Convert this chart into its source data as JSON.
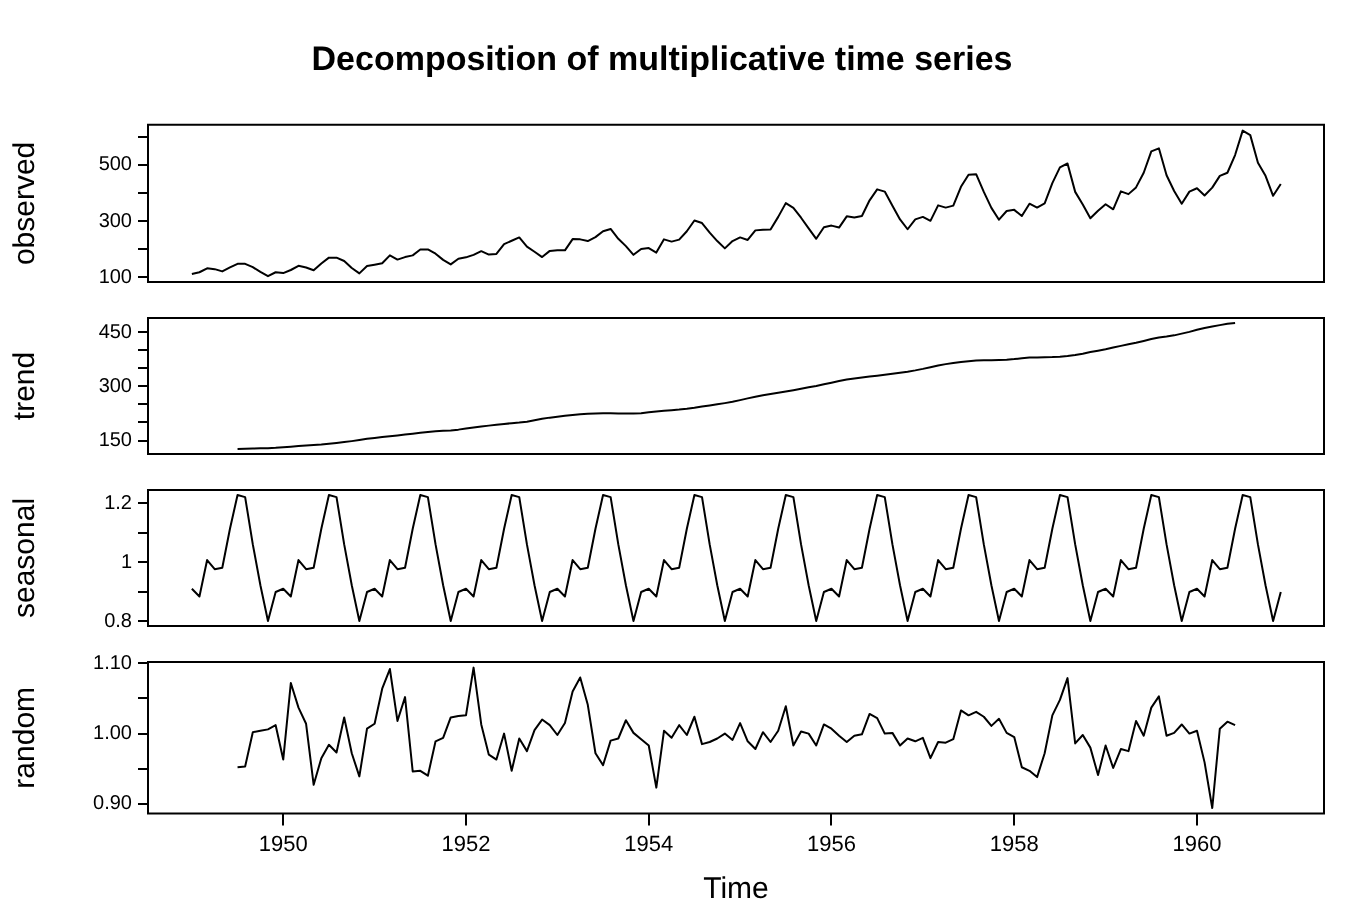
{
  "chart_data": [
    {
      "type": "line",
      "title": "Decomposition of multiplicative time series",
      "ylabel": "observed",
      "tick_labels": "y",
      "xlim": [
        1948.52,
        1961.39
      ],
      "ylim": [
        83.3,
        642.7
      ],
      "yticks": [
        100,
        {
          "value": 200,
          "label": null
        },
        300,
        {
          "value": 400,
          "label": null
        },
        500,
        {
          "value": 600,
          "label": null
        }
      ],
      "x": [
        1949,
        1949.083,
        1949.167,
        1949.25,
        1949.333,
        1949.417,
        1949.5,
        1949.583,
        1949.667,
        1949.75,
        1949.833,
        1949.917,
        1950,
        1950.083,
        1950.167,
        1950.25,
        1950.333,
        1950.417,
        1950.5,
        1950.583,
        1950.667,
        1950.75,
        1950.833,
        1950.917,
        1951,
        1951.083,
        1951.167,
        1951.25,
        1951.333,
        1951.417,
        1951.5,
        1951.583,
        1951.667,
        1951.75,
        1951.833,
        1951.917,
        1952,
        1952.083,
        1952.167,
        1952.25,
        1952.333,
        1952.417,
        1952.5,
        1952.583,
        1952.667,
        1952.75,
        1952.833,
        1952.917,
        1953,
        1953.083,
        1953.167,
        1953.25,
        1953.333,
        1953.417,
        1953.5,
        1953.583,
        1953.667,
        1953.75,
        1953.833,
        1953.917,
        1954,
        1954.083,
        1954.167,
        1954.25,
        1954.333,
        1954.417,
        1954.5,
        1954.583,
        1954.667,
        1954.75,
        1954.833,
        1954.917,
        1955,
        1955.083,
        1955.167,
        1955.25,
        1955.333,
        1955.417,
        1955.5,
        1955.583,
        1955.667,
        1955.75,
        1955.833,
        1955.917,
        1956,
        1956.083,
        1956.167,
        1956.25,
        1956.333,
        1956.417,
        1956.5,
        1956.583,
        1956.667,
        1956.75,
        1956.833,
        1956.917,
        1957,
        1957.083,
        1957.167,
        1957.25,
        1957.333,
        1957.417,
        1957.5,
        1957.583,
        1957.667,
        1957.75,
        1957.833,
        1957.917,
        1958,
        1958.083,
        1958.167,
        1958.25,
        1958.333,
        1958.417,
        1958.5,
        1958.583,
        1958.667,
        1958.75,
        1958.833,
        1958.917,
        1959,
        1959.083,
        1959.167,
        1959.25,
        1959.333,
        1959.417,
        1959.5,
        1959.583,
        1959.667,
        1959.75,
        1959.833,
        1959.917,
        1960,
        1960.083,
        1960.167,
        1960.25,
        1960.333,
        1960.417,
        1960.5,
        1960.583,
        1960.667,
        1960.75,
        1960.833,
        1960.917
      ],
      "series": [
        {
          "color": "#000000",
          "values": [
            112,
            118,
            132,
            129,
            121,
            135,
            148,
            148,
            136,
            119,
            104,
            118,
            115,
            126,
            141,
            135,
            125,
            149,
            170,
            170,
            158,
            133,
            114,
            140,
            145,
            150,
            178,
            163,
            172,
            178,
            199,
            199,
            184,
            162,
            146,
            166,
            171,
            180,
            193,
            181,
            183,
            218,
            230,
            242,
            209,
            191,
            172,
            194,
            196,
            196,
            236,
            235,
            229,
            243,
            264,
            272,
            237,
            211,
            180,
            201,
            204,
            188,
            235,
            227,
            234,
            264,
            302,
            293,
            259,
            229,
            203,
            229,
            242,
            233,
            267,
            269,
            270,
            315,
            364,
            347,
            312,
            274,
            237,
            278,
            284,
            277,
            317,
            313,
            318,
            374,
            413,
            405,
            355,
            306,
            271,
            306,
            315,
            301,
            356,
            348,
            355,
            422,
            465,
            467,
            404,
            347,
            305,
            336,
            340,
            318,
            362,
            348,
            363,
            435,
            491,
            505,
            404,
            359,
            310,
            337,
            360,
            342,
            406,
            396,
            420,
            472,
            548,
            559,
            463,
            407,
            362,
            405,
            417,
            391,
            419,
            461,
            472,
            535,
            622,
            606,
            508,
            461,
            390,
            432
          ]
        }
      ]
    },
    {
      "type": "line",
      "ylabel": "trend",
      "tick_labels": "y",
      "xlim": [
        1948.52,
        1961.39
      ],
      "ylim": [
        112.8,
        489
      ],
      "yticks": [
        150,
        {
          "value": 200,
          "label": null
        },
        {
          "value": 250,
          "label": null
        },
        300,
        {
          "value": 350,
          "label": null
        },
        {
          "value": 400,
          "label": null
        },
        450
      ],
      "x": [
        1949.5,
        1949.583,
        1949.667,
        1949.75,
        1949.833,
        1949.917,
        1950,
        1950.083,
        1950.167,
        1950.25,
        1950.333,
        1950.417,
        1950.5,
        1950.583,
        1950.667,
        1950.75,
        1950.833,
        1950.917,
        1951,
        1951.083,
        1951.167,
        1951.25,
        1951.333,
        1951.417,
        1951.5,
        1951.583,
        1951.667,
        1951.75,
        1951.833,
        1951.917,
        1952,
        1952.083,
        1952.167,
        1952.25,
        1952.333,
        1952.417,
        1952.5,
        1952.583,
        1952.667,
        1952.75,
        1952.833,
        1952.917,
        1953,
        1953.083,
        1953.167,
        1953.25,
        1953.333,
        1953.417,
        1953.5,
        1953.583,
        1953.667,
        1953.75,
        1953.833,
        1953.917,
        1954,
        1954.083,
        1954.167,
        1954.25,
        1954.333,
        1954.417,
        1954.5,
        1954.583,
        1954.667,
        1954.75,
        1954.833,
        1954.917,
        1955,
        1955.083,
        1955.167,
        1955.25,
        1955.333,
        1955.417,
        1955.5,
        1955.583,
        1955.667,
        1955.75,
        1955.833,
        1955.917,
        1956,
        1956.083,
        1956.167,
        1956.25,
        1956.333,
        1956.417,
        1956.5,
        1956.583,
        1956.667,
        1956.75,
        1956.833,
        1956.917,
        1957,
        1957.083,
        1957.167,
        1957.25,
        1957.333,
        1957.417,
        1957.5,
        1957.583,
        1957.667,
        1957.75,
        1957.833,
        1957.917,
        1958,
        1958.083,
        1958.167,
        1958.25,
        1958.333,
        1958.417,
        1958.5,
        1958.583,
        1958.667,
        1958.75,
        1958.833,
        1958.917,
        1959,
        1959.083,
        1959.167,
        1959.25,
        1959.333,
        1959.417,
        1959.5,
        1959.583,
        1959.667,
        1959.75,
        1959.833,
        1959.917,
        1960,
        1960.083,
        1960.167,
        1960.25,
        1960.333,
        1960.417
      ],
      "series": [
        {
          "color": "#000000",
          "values": [
            126.8,
            127.3,
            128.0,
            128.6,
            129.0,
            129.8,
            131.3,
            133.1,
            134.9,
            136.4,
            137.4,
            138.8,
            140.9,
            143.2,
            145.7,
            148.4,
            151.5,
            154.7,
            157.1,
            159.5,
            161.8,
            164.1,
            166.7,
            169.1,
            171.3,
            173.6,
            175.5,
            176.8,
            178.0,
            180.2,
            183.1,
            186.2,
            189.0,
            191.3,
            193.6,
            195.8,
            198.0,
            199.8,
            202.2,
            206.3,
            210.4,
            213.4,
            215.8,
            218.5,
            220.9,
            222.9,
            224.1,
            224.7,
            225.3,
            225.3,
            225.0,
            224.6,
            224.5,
            225.5,
            228.0,
            230.5,
            232.3,
            233.9,
            235.6,
            237.8,
            240.5,
            244.0,
            247.2,
            250.3,
            253.5,
            257.1,
            261.8,
            266.7,
            271.1,
            275.2,
            278.5,
            282.0,
            285.8,
            289.3,
            293.3,
            297.2,
            301.0,
            305.5,
            310.0,
            314.5,
            318.6,
            321.8,
            324.5,
            327.1,
            329.5,
            331.8,
            334.5,
            337.5,
            340.5,
            344.1,
            348.3,
            353.0,
            357.6,
            361.4,
            364.5,
            367.2,
            369.5,
            371.2,
            372.2,
            372.4,
            372.8,
            373.6,
            375.3,
            377.9,
            379.5,
            380.0,
            380.7,
            381.0,
            381.8,
            383.7,
            386.5,
            390.3,
            394.7,
            398.6,
            402.5,
            407.2,
            411.9,
            416.3,
            420.5,
            425.5,
            430.7,
            435.1,
            437.7,
            441.0,
            445.8,
            450.6,
            456.3,
            461.4,
            465.2,
            469.3,
            472.8,
            475.0
          ]
        }
      ]
    },
    {
      "type": "line",
      "ylabel": "seasonal",
      "tick_labels": "y",
      "xlim": [
        1948.52,
        1961.39
      ],
      "ylim": [
        0.784,
        1.244
      ],
      "yticks": [
        0.8,
        {
          "value": 0.9,
          "label": null
        },
        1.0,
        {
          "value": 1.1,
          "label": null
        },
        1.2
      ],
      "x": [
        1949,
        1949.083,
        1949.167,
        1949.25,
        1949.333,
        1949.417,
        1949.5,
        1949.583,
        1949.667,
        1949.75,
        1949.833,
        1949.917,
        1950,
        1950.083,
        1950.167,
        1950.25,
        1950.333,
        1950.417,
        1950.5,
        1950.583,
        1950.667,
        1950.75,
        1950.833,
        1950.917,
        1951,
        1951.083,
        1951.167,
        1951.25,
        1951.333,
        1951.417,
        1951.5,
        1951.583,
        1951.667,
        1951.75,
        1951.833,
        1951.917,
        1952,
        1952.083,
        1952.167,
        1952.25,
        1952.333,
        1952.417,
        1952.5,
        1952.583,
        1952.667,
        1952.75,
        1952.833,
        1952.917,
        1953,
        1953.083,
        1953.167,
        1953.25,
        1953.333,
        1953.417,
        1953.5,
        1953.583,
        1953.667,
        1953.75,
        1953.833,
        1953.917,
        1954,
        1954.083,
        1954.167,
        1954.25,
        1954.333,
        1954.417,
        1954.5,
        1954.583,
        1954.667,
        1954.75,
        1954.833,
        1954.917,
        1955,
        1955.083,
        1955.167,
        1955.25,
        1955.333,
        1955.417,
        1955.5,
        1955.583,
        1955.667,
        1955.75,
        1955.833,
        1955.917,
        1956,
        1956.083,
        1956.167,
        1956.25,
        1956.333,
        1956.417,
        1956.5,
        1956.583,
        1956.667,
        1956.75,
        1956.833,
        1956.917,
        1957,
        1957.083,
        1957.167,
        1957.25,
        1957.333,
        1957.417,
        1957.5,
        1957.583,
        1957.667,
        1957.75,
        1957.833,
        1957.917,
        1958,
        1958.083,
        1958.167,
        1958.25,
        1958.333,
        1958.417,
        1958.5,
        1958.583,
        1958.667,
        1958.75,
        1958.833,
        1958.917,
        1959,
        1959.083,
        1959.167,
        1959.25,
        1959.333,
        1959.417,
        1959.5,
        1959.583,
        1959.667,
        1959.75,
        1959.833,
        1959.917,
        1960,
        1960.083,
        1960.167,
        1960.25,
        1960.333,
        1960.417,
        1960.5,
        1960.583,
        1960.667,
        1960.75,
        1960.833,
        1960.917
      ],
      "series": [
        {
          "color": "#000000",
          "values": [
            0.91,
            0.884,
            1.007,
            0.976,
            0.981,
            1.113,
            1.227,
            1.22,
            1.06,
            0.922,
            0.801,
            0.899,
            0.91,
            0.884,
            1.007,
            0.976,
            0.981,
            1.113,
            1.227,
            1.22,
            1.06,
            0.922,
            0.801,
            0.899,
            0.91,
            0.884,
            1.007,
            0.976,
            0.981,
            1.113,
            1.227,
            1.22,
            1.06,
            0.922,
            0.801,
            0.899,
            0.91,
            0.884,
            1.007,
            0.976,
            0.981,
            1.113,
            1.227,
            1.22,
            1.06,
            0.922,
            0.801,
            0.899,
            0.91,
            0.884,
            1.007,
            0.976,
            0.981,
            1.113,
            1.227,
            1.22,
            1.06,
            0.922,
            0.801,
            0.899,
            0.91,
            0.884,
            1.007,
            0.976,
            0.981,
            1.113,
            1.227,
            1.22,
            1.06,
            0.922,
            0.801,
            0.899,
            0.91,
            0.884,
            1.007,
            0.976,
            0.981,
            1.113,
            1.227,
            1.22,
            1.06,
            0.922,
            0.801,
            0.899,
            0.91,
            0.884,
            1.007,
            0.976,
            0.981,
            1.113,
            1.227,
            1.22,
            1.06,
            0.922,
            0.801,
            0.899,
            0.91,
            0.884,
            1.007,
            0.976,
            0.981,
            1.113,
            1.227,
            1.22,
            1.06,
            0.922,
            0.801,
            0.899,
            0.91,
            0.884,
            1.007,
            0.976,
            0.981,
            1.113,
            1.227,
            1.22,
            1.06,
            0.922,
            0.801,
            0.899,
            0.91,
            0.884,
            1.007,
            0.976,
            0.981,
            1.113,
            1.227,
            1.22,
            1.06,
            0.922,
            0.801,
            0.899,
            0.91,
            0.884,
            1.007,
            0.976,
            0.981,
            1.113,
            1.227,
            1.22,
            1.06,
            0.922,
            0.801,
            0.899
          ]
        }
      ]
    },
    {
      "type": "line",
      "ylabel": "random",
      "xlabel": "Time",
      "xlim": [
        1948.52,
        1961.39
      ],
      "xticks": [
        1950,
        1952,
        1954,
        1956,
        1958,
        1960
      ],
      "ylim": [
        0.886,
        1.102
      ],
      "yticks": [
        {
          "value": 0.9,
          "label": "0.90"
        },
        {
          "value": 0.95,
          "label": null
        },
        {
          "value": 1.0,
          "label": "1.00"
        },
        {
          "value": 1.05,
          "label": null
        },
        {
          "value": 1.1,
          "label": "1.10"
        }
      ],
      "x": [
        1949.5,
        1949.583,
        1949.667,
        1949.75,
        1949.833,
        1949.917,
        1950,
        1950.083,
        1950.167,
        1950.25,
        1950.333,
        1950.417,
        1950.5,
        1950.583,
        1950.667,
        1950.75,
        1950.833,
        1950.917,
        1951,
        1951.083,
        1951.167,
        1951.25,
        1951.333,
        1951.417,
        1951.5,
        1951.583,
        1951.667,
        1951.75,
        1951.833,
        1951.917,
        1952,
        1952.083,
        1952.167,
        1952.25,
        1952.333,
        1952.417,
        1952.5,
        1952.583,
        1952.667,
        1952.75,
        1952.833,
        1952.917,
        1953,
        1953.083,
        1953.167,
        1953.25,
        1953.333,
        1953.417,
        1953.5,
        1953.583,
        1953.667,
        1953.75,
        1953.833,
        1953.917,
        1954,
        1954.083,
        1954.167,
        1954.25,
        1954.333,
        1954.417,
        1954.5,
        1954.583,
        1954.667,
        1954.75,
        1954.833,
        1954.917,
        1955,
        1955.083,
        1955.167,
        1955.25,
        1955.333,
        1955.417,
        1955.5,
        1955.583,
        1955.667,
        1955.75,
        1955.833,
        1955.917,
        1956,
        1956.083,
        1956.167,
        1956.25,
        1956.333,
        1956.417,
        1956.5,
        1956.583,
        1956.667,
        1956.75,
        1956.833,
        1956.917,
        1957,
        1957.083,
        1957.167,
        1957.25,
        1957.333,
        1957.417,
        1957.5,
        1957.583,
        1957.667,
        1957.75,
        1957.833,
        1957.917,
        1958,
        1958.083,
        1958.167,
        1958.25,
        1958.333,
        1958.417,
        1958.5,
        1958.583,
        1958.667,
        1958.75,
        1958.833,
        1958.917,
        1959,
        1959.083,
        1959.167,
        1959.25,
        1959.333,
        1959.417,
        1959.5,
        1959.583,
        1959.667,
        1959.75,
        1959.833,
        1959.917,
        1960,
        1960.083,
        1960.167,
        1960.25,
        1960.333,
        1960.417
      ],
      "series": [
        {
          "color": "#000000",
          "values": [
            0.952,
            0.953,
            1.002,
            1.004,
            1.006,
            1.012,
            0.963,
            1.072,
            1.037,
            1.014,
            0.927,
            0.965,
            0.984,
            0.973,
            1.023,
            0.972,
            0.939,
            1.007,
            1.014,
            1.064,
            1.092,
            1.018,
            1.052,
            0.946,
            0.947,
            0.94,
            0.989,
            0.994,
            1.023,
            1.025,
            1.026,
            1.094,
            1.013,
            0.97,
            0.963,
            1.0,
            0.947,
            0.993,
            0.975,
            1.005,
            1.02,
            1.012,
            0.998,
            1.015,
            1.06,
            1.08,
            1.041,
            0.972,
            0.955,
            0.99,
            0.993,
            1.019,
            1.001,
            0.992,
            0.983,
            0.923,
            1.004,
            0.994,
            1.012,
            0.998,
            1.024,
            0.985,
            0.988,
            0.993,
            1.0,
            0.991,
            1.015,
            0.989,
            0.978,
            1.002,
            0.988,
            1.004,
            1.039,
            0.983,
            1.003,
            1.0,
            0.983,
            1.013,
            1.007,
            0.997,
            0.988,
            0.997,
            0.999,
            1.028,
            1.022,
            1.0,
            1.001,
            0.983,
            0.993,
            0.989,
            0.994,
            0.965,
            0.988,
            0.987,
            0.992,
            1.033,
            1.026,
            1.031,
            1.024,
            1.011,
            1.021,
            1.001,
            0.995,
            0.952,
            0.947,
            0.938,
            0.972,
            1.026,
            1.048,
            1.079,
            0.986,
            0.998,
            0.98,
            0.941,
            0.983,
            0.951,
            0.978,
            0.975,
            1.018,
            0.997,
            1.037,
            1.053,
            0.997,
            1.001,
            1.013,
            1.0,
            1.004,
            0.959,
            0.894,
            1.007,
            1.017,
            1.012
          ]
        }
      ]
    }
  ]
}
